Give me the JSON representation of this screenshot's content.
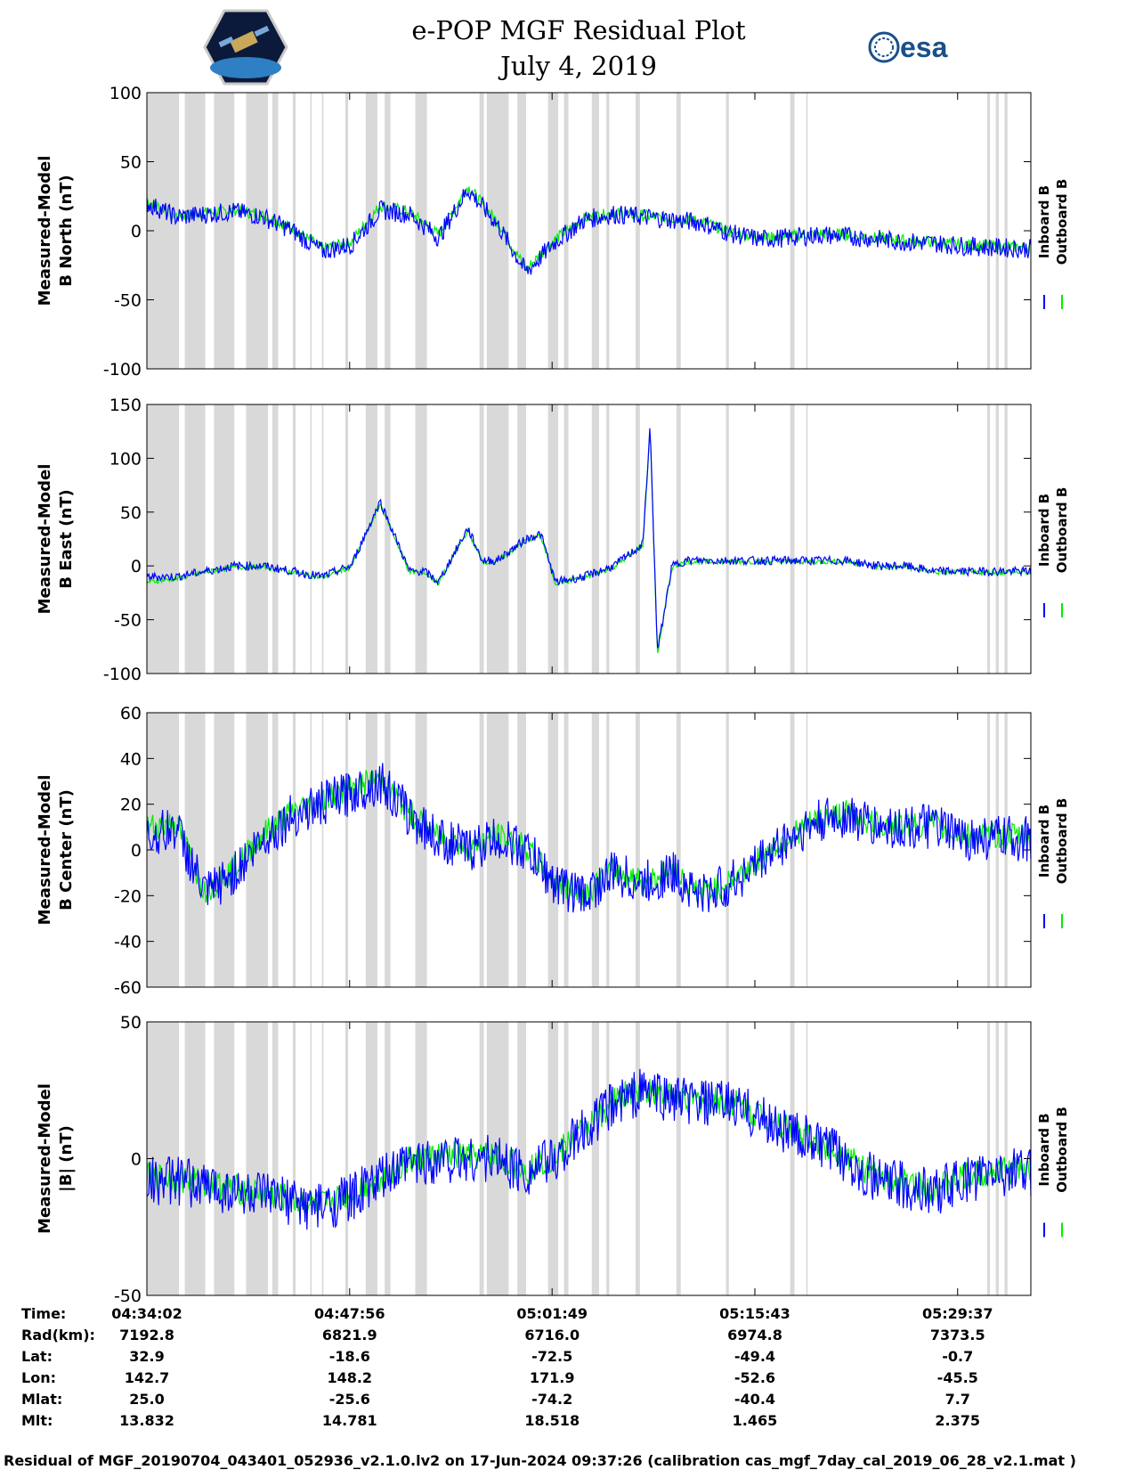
{
  "header": {
    "title_line1": "e-POP MGF Residual Plot",
    "title_line2": "July 4, 2019",
    "logo_left": "cassiope-mission-logo",
    "logo_right": "esa-logo",
    "esa_text": "esa"
  },
  "colors": {
    "inboard": "#0000ff",
    "outboard": "#00ee00",
    "gap_shading": "#d9d9d9",
    "axes": "#000000"
  },
  "legend": {
    "inboard": "Inboard B",
    "outboard": "Outboard B"
  },
  "chart_data": [
    {
      "type": "line",
      "ylabel_line1": "Measured-Model",
      "ylabel_line2": "B North (nT)",
      "ylim": [
        -100,
        100
      ],
      "yticks": [
        -100,
        -50,
        0,
        50,
        100
      ],
      "series": [
        {
          "name": "Inboard B",
          "x_min": [
            0,
            2,
            4,
            6,
            8,
            10,
            12,
            14,
            16,
            18,
            20,
            22,
            24,
            26,
            28,
            30,
            32,
            34,
            36,
            38,
            40,
            42,
            44,
            46,
            48,
            50,
            52,
            54,
            56,
            58,
            60
          ],
          "values": [
            20,
            10,
            12,
            14,
            10,
            0,
            -15,
            -10,
            15,
            12,
            -5,
            30,
            5,
            -30,
            -8,
            8,
            12,
            10,
            8,
            6,
            -2,
            -6,
            -5,
            -3,
            -4,
            -6,
            -8,
            -9,
            -11,
            -12,
            -13
          ]
        },
        {
          "name": "Outboard B",
          "x_min": [
            0,
            2,
            4,
            6,
            8,
            10,
            12,
            14,
            16,
            18,
            20,
            22,
            24,
            26,
            28,
            30,
            32,
            34,
            36,
            38,
            40,
            42,
            44,
            46,
            48,
            50,
            52,
            54,
            56,
            58,
            60
          ],
          "values": [
            22,
            11,
            13,
            15,
            11,
            2,
            -13,
            -8,
            18,
            14,
            -3,
            32,
            7,
            -28,
            -6,
            9,
            13,
            11,
            9,
            7,
            -1,
            -5,
            -4,
            -2,
            -3,
            -5,
            -7,
            -8,
            -10,
            -11,
            -12
          ]
        }
      ]
    },
    {
      "type": "line",
      "ylabel_line1": "Measured-Model",
      "ylabel_line2": "B East (nT)",
      "ylim": [
        -100,
        150
      ],
      "yticks": [
        -100,
        -50,
        0,
        50,
        100,
        150
      ],
      "series": [
        {
          "name": "Inboard B",
          "x_min": [
            0,
            2,
            4,
            6,
            8,
            10,
            12,
            14,
            16,
            18,
            19,
            20,
            22,
            23,
            24,
            26,
            27,
            28,
            30,
            32,
            34,
            34.5,
            35,
            36,
            37,
            38,
            40,
            42,
            44,
            46,
            48,
            50,
            52,
            54,
            56,
            58,
            60
          ],
          "values": [
            -10,
            -10,
            -5,
            0,
            0,
            -5,
            -10,
            0,
            60,
            -5,
            -5,
            -15,
            35,
            5,
            5,
            25,
            30,
            -15,
            -10,
            0,
            20,
            130,
            -80,
            0,
            5,
            5,
            5,
            5,
            5,
            5,
            5,
            0,
            0,
            -5,
            -5,
            -5,
            -5
          ]
        },
        {
          "name": "Outboard B",
          "x_min": [
            0,
            2,
            4,
            6,
            8,
            10,
            12,
            14,
            16,
            18,
            19,
            20,
            22,
            23,
            24,
            26,
            27,
            28,
            30,
            32,
            34,
            34.5,
            35,
            36,
            37,
            38,
            40,
            42,
            44,
            46,
            48,
            50,
            52,
            54,
            56,
            58,
            60
          ],
          "values": [
            -15,
            -12,
            -6,
            -1,
            -1,
            -6,
            -11,
            -1,
            58,
            -6,
            -6,
            -16,
            33,
            4,
            4,
            24,
            28,
            -16,
            -11,
            -1,
            19,
            128,
            -82,
            -1,
            4,
            4,
            4,
            4,
            4,
            4,
            4,
            -1,
            -1,
            -6,
            -6,
            -6,
            -6
          ]
        }
      ]
    },
    {
      "type": "line",
      "ylabel_line1": "Measured-Model",
      "ylabel_line2": "B Center (nT)",
      "ylim": [
        -60,
        60
      ],
      "yticks": [
        -60,
        -40,
        -20,
        0,
        20,
        40,
        60
      ],
      "series": [
        {
          "name": "Inboard B",
          "x_min": [
            0,
            2,
            4,
            6,
            8,
            10,
            12,
            14,
            16,
            18,
            20,
            22,
            24,
            26,
            28,
            30,
            32,
            34,
            36,
            38,
            40,
            42,
            44,
            46,
            48,
            50,
            52,
            54,
            56,
            58,
            60
          ],
          "values": [
            5,
            10,
            -20,
            -10,
            5,
            15,
            20,
            25,
            30,
            15,
            5,
            0,
            5,
            0,
            -15,
            -20,
            -10,
            -15,
            -10,
            -20,
            -15,
            -5,
            5,
            12,
            15,
            10,
            10,
            10,
            5,
            5,
            5
          ]
        },
        {
          "name": "Outboard B",
          "x_min": [
            0,
            2,
            4,
            6,
            8,
            10,
            12,
            14,
            16,
            18,
            20,
            22,
            24,
            26,
            28,
            30,
            32,
            34,
            36,
            38,
            40,
            42,
            44,
            46,
            48,
            50,
            52,
            54,
            56,
            58,
            60
          ],
          "values": [
            10,
            12,
            -18,
            -8,
            7,
            17,
            22,
            27,
            31,
            16,
            6,
            1,
            6,
            1,
            -14,
            -19,
            -9,
            -14,
            -9,
            -19,
            -14,
            -4,
            6,
            13,
            16,
            11,
            11,
            11,
            6,
            6,
            6
          ]
        }
      ]
    },
    {
      "type": "line",
      "ylabel_line1": "Measured-Model",
      "ylabel_line2": "|B| (nT)",
      "ylim": [
        -50,
        50
      ],
      "yticks": [
        -50,
        0,
        50
      ],
      "series": [
        {
          "name": "Inboard B",
          "x_min": [
            0,
            2,
            4,
            6,
            8,
            10,
            12,
            14,
            16,
            18,
            20,
            22,
            24,
            26,
            28,
            30,
            32,
            34,
            36,
            38,
            40,
            42,
            44,
            46,
            48,
            50,
            52,
            54,
            56,
            58,
            60
          ],
          "values": [
            -8,
            -8,
            -10,
            -12,
            -14,
            -16,
            -18,
            -14,
            -8,
            -2,
            0,
            0,
            0,
            -5,
            0,
            10,
            20,
            25,
            22,
            20,
            20,
            15,
            10,
            5,
            0,
            -8,
            -10,
            -12,
            -8,
            -5,
            -5
          ]
        },
        {
          "name": "Outboard B",
          "x_min": [
            0,
            2,
            4,
            6,
            8,
            10,
            12,
            14,
            16,
            18,
            20,
            22,
            24,
            26,
            28,
            30,
            32,
            34,
            36,
            38,
            40,
            42,
            44,
            46,
            48,
            50,
            52,
            54,
            56,
            58,
            60
          ],
          "values": [
            -7,
            -7,
            -9,
            -11,
            -13,
            -15,
            -17,
            -13,
            -7,
            -1,
            1,
            1,
            1,
            -4,
            1,
            11,
            21,
            26,
            23,
            21,
            21,
            16,
            11,
            6,
            1,
            -7,
            -9,
            -11,
            -7,
            -4,
            -4
          ]
        }
      ]
    }
  ],
  "x_axis": {
    "x_range_min": [
      0,
      60.6
    ],
    "tick_x_min": [
      0,
      13.9,
      27.78,
      41.68,
      55.58
    ]
  },
  "gap_intervals_min": [
    [
      0,
      2.2
    ],
    [
      2.6,
      4.0
    ],
    [
      4.6,
      6.0
    ],
    [
      6.8,
      8.3
    ],
    [
      8.6,
      9.0
    ],
    [
      10.0,
      10.2
    ],
    [
      11.2,
      11.3
    ],
    [
      12.0,
      12.1
    ],
    [
      13.6,
      13.8
    ],
    [
      15.0,
      15.8
    ],
    [
      16.3,
      16.7
    ],
    [
      18.4,
      19.2
    ],
    [
      22.8,
      23.1
    ],
    [
      23.3,
      24.8
    ],
    [
      25.4,
      26.0
    ],
    [
      27.5,
      28.2
    ],
    [
      28.6,
      28.9
    ],
    [
      30.5,
      31.0
    ],
    [
      31.5,
      31.7
    ],
    [
      33.5,
      33.8
    ],
    [
      36.3,
      36.6
    ],
    [
      39.7,
      39.9
    ],
    [
      44.1,
      44.4
    ],
    [
      45.2,
      45.3
    ],
    [
      57.6,
      57.8
    ],
    [
      58.2,
      58.4
    ],
    [
      58.8,
      59.0
    ]
  ],
  "footer": {
    "labels": [
      "Time:",
      "Rad(km):",
      "Lat:",
      "Lon:",
      "Mlat:",
      "Mlt:"
    ],
    "columns": [
      [
        "04:34:02",
        "7192.8",
        "32.9",
        "142.7",
        "25.0",
        "13.832"
      ],
      [
        "04:47:56",
        "6821.9",
        "-18.6",
        "148.2",
        "-25.6",
        "14.781"
      ],
      [
        "05:01:49",
        "6716.0",
        "-72.5",
        "171.9",
        "-74.2",
        "18.518"
      ],
      [
        "05:15:43",
        "6974.8",
        "-49.4",
        "-52.6",
        "-40.4",
        "1.465"
      ],
      [
        "05:29:37",
        "7373.5",
        "-0.7",
        "-45.5",
        "7.7",
        "2.375"
      ]
    ],
    "caption": "Residual of MGF_20190704_043401_052936_v2.1.0.lv2 on 17-Jun-2024 09:37:26 (calibration cas_mgf_7day_cal_2019_06_28_v2.1.mat )"
  }
}
